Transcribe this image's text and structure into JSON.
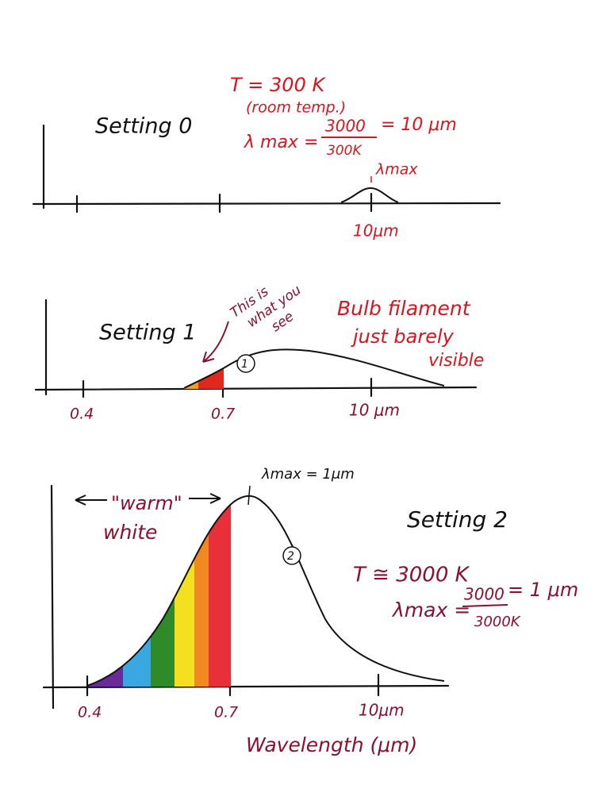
{
  "panels": [
    {
      "setting": "Setting 0",
      "temperature": "T = 300 K",
      "note": "(room temp.)",
      "formula": {
        "lhs": "λ max =",
        "numerator": "3000",
        "denominator": "300K",
        "result": "= 10 μm"
      },
      "peak_label": "λmax",
      "tick_labels": [
        "10μm"
      ]
    },
    {
      "setting": "Setting 1",
      "pointer_note": [
        "This is",
        "what you",
        "see"
      ],
      "remark": [
        "Bulb filament",
        "just barely",
        "visible"
      ],
      "curve_label": "1",
      "tick_labels": [
        "0.4",
        "0.7",
        "10 μm"
      ]
    },
    {
      "setting": "Setting 2",
      "range_label": [
        "\"warm\"",
        "white"
      ],
      "peak_label": "λmax = 1μm",
      "temperature": "T ≅ 3000 K",
      "formula": {
        "lhs": "λmax =",
        "numerator": "3000",
        "denominator": "3000K",
        "result": "= 1 μm"
      },
      "curve_label": "2",
      "tick_labels": [
        "0.4",
        "0.7",
        "10μm"
      ],
      "x_axis_label": "Wavelength (μm)"
    }
  ]
}
